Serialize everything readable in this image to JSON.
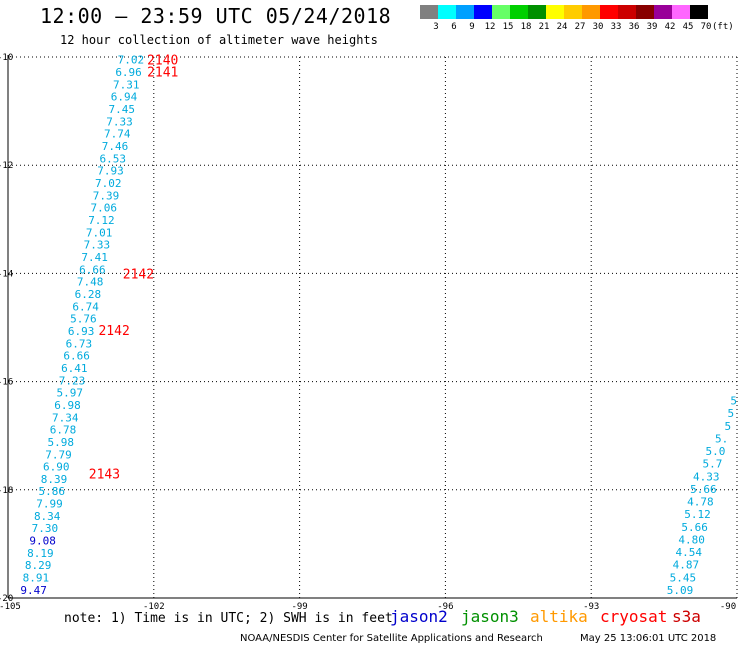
{
  "header": {
    "title": "12:00 — 23:59 UTC 05/24/2018",
    "subtitle": "12 hour collection of altimeter wave heights"
  },
  "legend": {
    "unit": "(ft)",
    "bins": [
      {
        "label": "3",
        "color": "#808080"
      },
      {
        "label": "6",
        "color": "#00ffff"
      },
      {
        "label": "9",
        "color": "#00a0ff"
      },
      {
        "label": "12",
        "color": "#0000ff"
      },
      {
        "label": "15",
        "color": "#66ff66"
      },
      {
        "label": "18",
        "color": "#00d000"
      },
      {
        "label": "21",
        "color": "#009000"
      },
      {
        "label": "24",
        "color": "#ffff00"
      },
      {
        "label": "27",
        "color": "#ffcc00"
      },
      {
        "label": "30",
        "color": "#ff9900"
      },
      {
        "label": "33",
        "color": "#ff0000"
      },
      {
        "label": "36",
        "color": "#cc0000"
      },
      {
        "label": "39",
        "color": "#880000"
      },
      {
        "label": "42",
        "color": "#990099"
      },
      {
        "label": "45",
        "color": "#ff66ff"
      },
      {
        "label": "70",
        "color": "#000000"
      }
    ]
  },
  "chart_data": {
    "type": "scatter",
    "title": "12:00 — 23:59 UTC 05/24/2018",
    "subtitle": "12 hour collection of altimeter wave heights",
    "xlim": [
      -105,
      -90
    ],
    "ylim": [
      -20,
      -10
    ],
    "xticks": [
      -105,
      -102,
      -99,
      -96,
      -93,
      -90
    ],
    "yticks": [
      -10,
      -12,
      -14,
      -16,
      -18,
      -20
    ],
    "xtick_labels": [
      "-105",
      "-102",
      "-99",
      "-96",
      "-93",
      "-90"
    ],
    "ytick_labels": [
      "-10",
      "-12",
      "-14",
      "-16",
      "-18",
      "-20"
    ],
    "grid": true,
    "series": [
      {
        "name": "jason2",
        "track": {
          "x": [
            -102.2,
            -104.2
          ],
          "y": [
            -10.05,
            -19.85
          ]
        },
        "values": [
          "7.02",
          "6.96",
          "7.31",
          "6.94",
          "7.45",
          "7.33",
          "7.74",
          "7.46",
          "6.53",
          "7.93",
          "7.02",
          "7.39",
          "7.06",
          "7.12",
          "7.01",
          "7.33",
          "7.41",
          "6.66",
          "7.48",
          "6.28",
          "6.74",
          "5.76",
          "6.93",
          "6.73",
          "6.66",
          "6.41",
          "7.23",
          "5.97",
          "6.98",
          "7.34",
          "6.78",
          "5.98",
          "7.79",
          "6.90",
          "8.39",
          "5.86",
          "7.99",
          "8.34",
          "7.30",
          "9.08",
          "8.19",
          "8.29",
          "8.91",
          "9.47"
        ],
        "times": [
          {
            "label": "2140",
            "x": -102.2,
            "y": -10.05
          },
          {
            "label": "2141",
            "x": -102.2,
            "y": -10.27
          },
          {
            "label": "2142",
            "x": -102.7,
            "y": -14.0
          },
          {
            "label": "2142",
            "x": -103.2,
            "y": -15.05
          },
          {
            "label": "2143",
            "x": -103.4,
            "y": -17.7
          }
        ]
      },
      {
        "name": "jason3",
        "track": {
          "x": [
            -90.0,
            -90.9
          ],
          "y": [
            -16.35,
            -19.85
          ]
        },
        "values": [
          "5",
          "5",
          "5",
          "5.",
          "5.0",
          "5.7",
          "4.33",
          "5.66",
          "4.78",
          "5.12",
          "5.66",
          "4.80",
          "4.54",
          "4.87",
          "5.45",
          "5.09"
        ],
        "times": []
      },
      {
        "name": "altika",
        "values": [],
        "times": []
      },
      {
        "name": "cryosat",
        "values": [],
        "times": []
      },
      {
        "name": "s3a",
        "values": [],
        "times": []
      }
    ]
  },
  "footer": {
    "note": "note: 1) Time is in UTC; 2) SWH is in feet",
    "credit": "NOAA/NESDIS Center for Satellite Applications and Research",
    "timestamp": "May 25 13:06:01 UTC 2018"
  },
  "colors": {
    "jason2": "#0000cc",
    "jason3": "#009000",
    "altika": "#ff9900",
    "cryosat": "#ff0000",
    "s3a": "#cc0000",
    "value_text": "#00aadd",
    "value_text_high": "#0000cc",
    "time_label": "#ff0000"
  }
}
